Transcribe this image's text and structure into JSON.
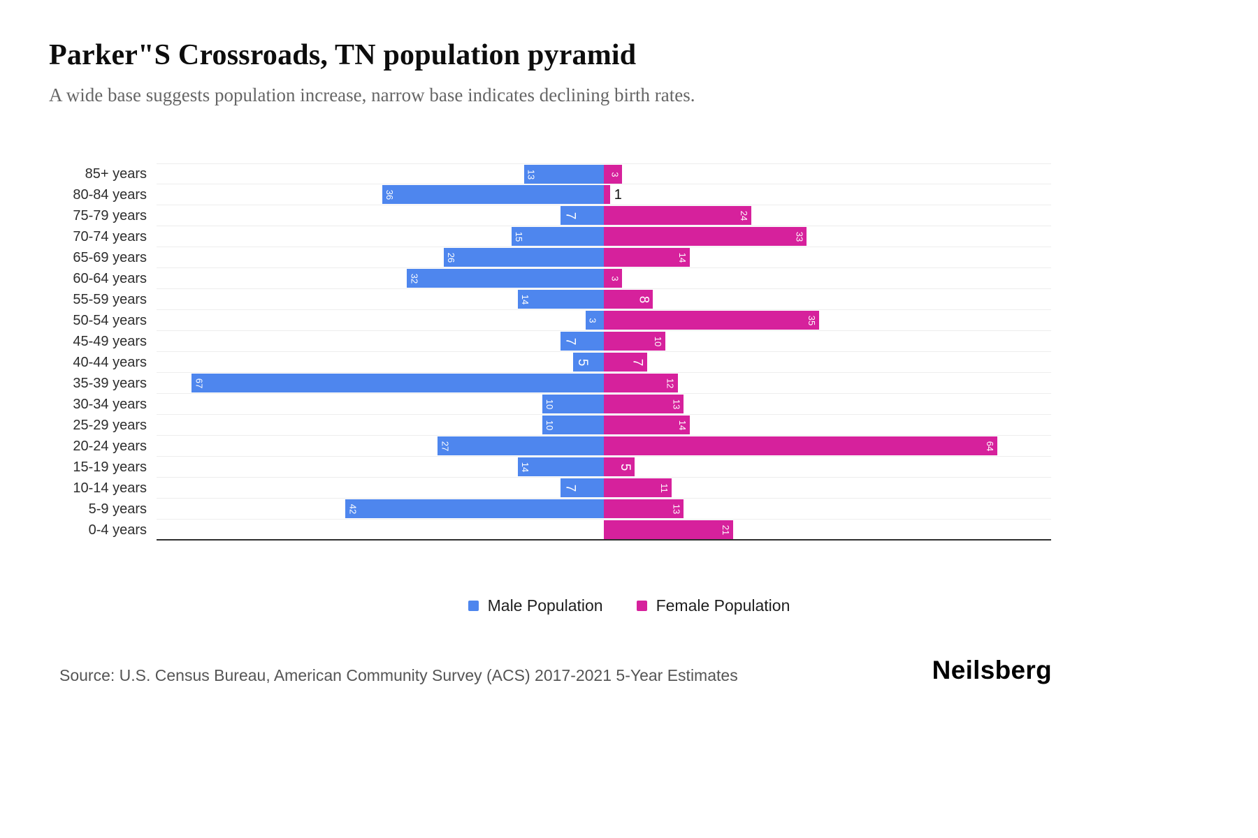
{
  "header": {
    "title": "Parker\"S Crossroads, TN population pyramid",
    "subtitle": "A wide base suggests population increase, narrow base indicates declining birth rates."
  },
  "chart_data": {
    "type": "bar",
    "variant": "population-pyramid",
    "title": "Parker\"S Crossroads, TN population pyramid",
    "categories": [
      "85+ years",
      "80-84 years",
      "75-79 years",
      "70-74 years",
      "65-69 years",
      "60-64 years",
      "55-59 years",
      "50-54 years",
      "45-49 years",
      "40-44 years",
      "35-39 years",
      "30-34 years",
      "25-29 years",
      "20-24 years",
      "15-19 years",
      "10-14 years",
      "5-9 years",
      "0-4 years"
    ],
    "series": [
      {
        "name": "Male Population",
        "color": "#4e86ee",
        "values": [
          13,
          36,
          7,
          15,
          26,
          32,
          14,
          3,
          7,
          5,
          67,
          10,
          10,
          27,
          14,
          7,
          42,
          0
        ]
      },
      {
        "name": "Female Population",
        "color": "#d6219c",
        "values": [
          3,
          1,
          24,
          33,
          14,
          3,
          8,
          35,
          10,
          7,
          12,
          13,
          14,
          64,
          5,
          11,
          13,
          21
        ]
      }
    ],
    "xmax_per_side": 72,
    "grid": true,
    "legend_position": "bottom"
  },
  "legend": {
    "male_label": "Male Population",
    "female_label": "Female Population"
  },
  "footer": {
    "source": "Source: U.S. Census Bureau, American Community Survey (ACS) 2017-2021 5-Year Estimates",
    "brand": "Neilsberg"
  }
}
